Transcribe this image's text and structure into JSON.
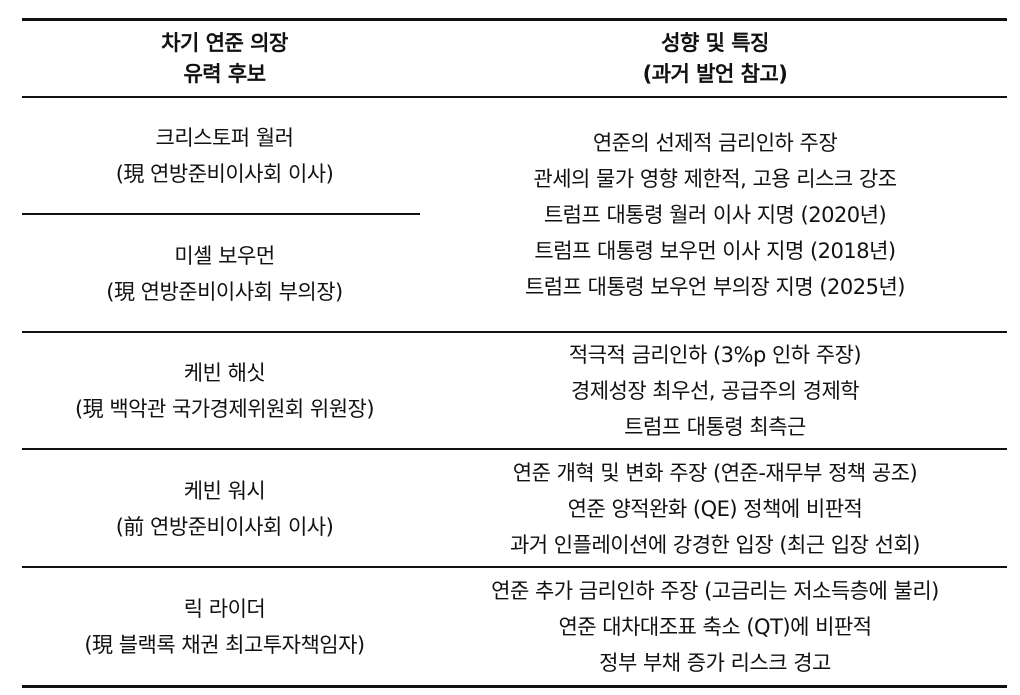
{
  "header": {
    "candidate": [
      "차기 연준 의장",
      "유력 후보"
    ],
    "traits": [
      "성향 및 특징",
      "(과거 발언 참고)"
    ]
  },
  "rows": [
    {
      "candidates": [
        {
          "name": "크리스토퍼 월러",
          "position": "(現 연방준비이사회 이사)"
        },
        {
          "name": "미셸 보우먼",
          "position": "(現 연방준비이사회 부의장)"
        }
      ],
      "traits": [
        "연준의 선제적 금리인하 주장",
        "관세의 물가 영향 제한적, 고용 리스크 강조",
        "트럼프 대통령 월러 이사 지명 (2020년)",
        "트럼프 대통령 보우먼 이사 지명 (2018년)",
        "트럼프 대통령 보우언 부의장 지명 (2025년)"
      ]
    },
    {
      "candidates": [
        {
          "name": "케빈 해싯",
          "position": "(現 백악관 국가경제위원회 위원장)"
        }
      ],
      "traits": [
        "적극적 금리인하 (3%p 인하 주장)",
        "경제성장 최우선, 공급주의 경제학",
        "트럼프 대통령 최측근"
      ]
    },
    {
      "candidates": [
        {
          "name": "케빈 워시",
          "position": "(前 연방준비이사회 이사)"
        }
      ],
      "traits": [
        "연준 개혁 및 변화 주장 (연준-재무부 정책 공조)",
        "연준 양적완화 (QE) 정책에 비판적",
        "과거 인플레이션에 강경한 입장 (최근 입장 선회)"
      ]
    },
    {
      "candidates": [
        {
          "name": "릭 라이더",
          "position": "(現 블랙록 채권 최고투자책임자)"
        }
      ],
      "traits": [
        "연준 추가 금리인하 주장 (고금리는 저소득층에 불리)",
        "연준 대차대조표 축소 (QT)에 비판적",
        "정부 부채 증가 리스크 경고"
      ]
    }
  ]
}
